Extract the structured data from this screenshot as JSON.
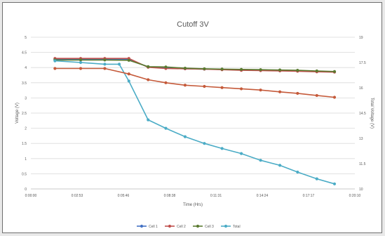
{
  "chart_data": {
    "type": "line",
    "title": "Cutoff 3V",
    "xlabel": "Time (Hrs)",
    "ylabel": "Voltage (V)",
    "y2label": "Total Voltage (V)",
    "x_tick_labels": [
      "0:00:00",
      "0:02:53",
      "0:05:46",
      "0:08:38",
      "0:11:31",
      "0:14:24",
      "0:17:17",
      "0:20:10"
    ],
    "y_ticks": [
      0,
      0.5,
      1,
      1.5,
      2,
      2.5,
      3,
      3.5,
      4,
      4.5,
      5
    ],
    "y2_ticks": [
      10,
      11.5,
      13,
      14.5,
      16,
      17.5,
      19
    ],
    "xlim_hours": [
      0,
      20.1667
    ],
    "ylim": [
      0,
      5
    ],
    "y2lim": [
      10,
      19
    ],
    "grid": true,
    "legend_position": "bottom",
    "series": [
      {
        "name": "Cell 1",
        "axis": "left",
        "color": "#4472c4",
        "x": [
          1.5,
          3.1,
          4.6,
          6.1,
          7.3,
          8.4,
          9.6,
          10.8,
          11.9,
          13.1,
          14.3,
          15.5,
          16.6,
          17.8,
          18.9
        ],
        "y": [
          4.27,
          4.27,
          4.27,
          4.27,
          4.02,
          3.99,
          3.96,
          3.95,
          3.94,
          3.92,
          3.91,
          3.9,
          3.89,
          3.87,
          3.86
        ]
      },
      {
        "name": "Cell 2",
        "axis": "left",
        "color": "#c0504d",
        "x": [
          1.5,
          3.1,
          4.6,
          6.1,
          7.3,
          8.4,
          9.6,
          10.8,
          11.9,
          13.1,
          14.3,
          15.5,
          16.6,
          17.8,
          18.9
        ],
        "y": [
          4.3,
          4.3,
          4.3,
          4.3,
          4.01,
          3.97,
          3.96,
          3.95,
          3.93,
          3.91,
          3.9,
          3.89,
          3.88,
          3.86,
          3.85
        ]
      },
      {
        "name": "Cell 3",
        "axis": "left",
        "color": "#5a7a30",
        "x": [
          1.5,
          3.1,
          4.6,
          6.1,
          7.3,
          8.4,
          9.6,
          10.8,
          11.9,
          13.1,
          14.3,
          15.5,
          16.6,
          17.8,
          18.9
        ],
        "y": [
          4.25,
          4.25,
          4.25,
          4.24,
          4.03,
          4.02,
          3.98,
          3.96,
          3.95,
          3.94,
          3.93,
          3.92,
          3.91,
          3.89,
          3.87
        ]
      },
      {
        "name": "Total",
        "axis": "right",
        "color": "#4bacc6",
        "x": [
          1.5,
          3.1,
          4.6,
          5.5,
          6.1,
          7.3,
          8.4,
          9.6,
          10.8,
          11.9,
          13.1,
          14.3,
          15.5,
          16.6,
          17.8,
          18.9
        ],
        "y": [
          17.6,
          17.5,
          17.4,
          17.4,
          16.4,
          14.1,
          13.6,
          13.1,
          12.7,
          12.4,
          12.1,
          11.7,
          11.4,
          11.0,
          10.6,
          10.3
        ]
      },
      {
        "name": "",
        "axis": "left",
        "color": "#c55a3a",
        "x": [
          1.5,
          3.1,
          4.6,
          6.1,
          7.3,
          8.4,
          9.6,
          10.8,
          11.9,
          13.1,
          14.3,
          15.5,
          16.6,
          17.8,
          18.9
        ],
        "y": [
          3.97,
          3.97,
          3.97,
          3.79,
          3.6,
          3.5,
          3.42,
          3.38,
          3.34,
          3.3,
          3.26,
          3.2,
          3.15,
          3.08,
          3.02
        ]
      }
    ],
    "legend": [
      "Cell 1",
      "Cell 2",
      "Cell 3",
      "Total"
    ]
  }
}
